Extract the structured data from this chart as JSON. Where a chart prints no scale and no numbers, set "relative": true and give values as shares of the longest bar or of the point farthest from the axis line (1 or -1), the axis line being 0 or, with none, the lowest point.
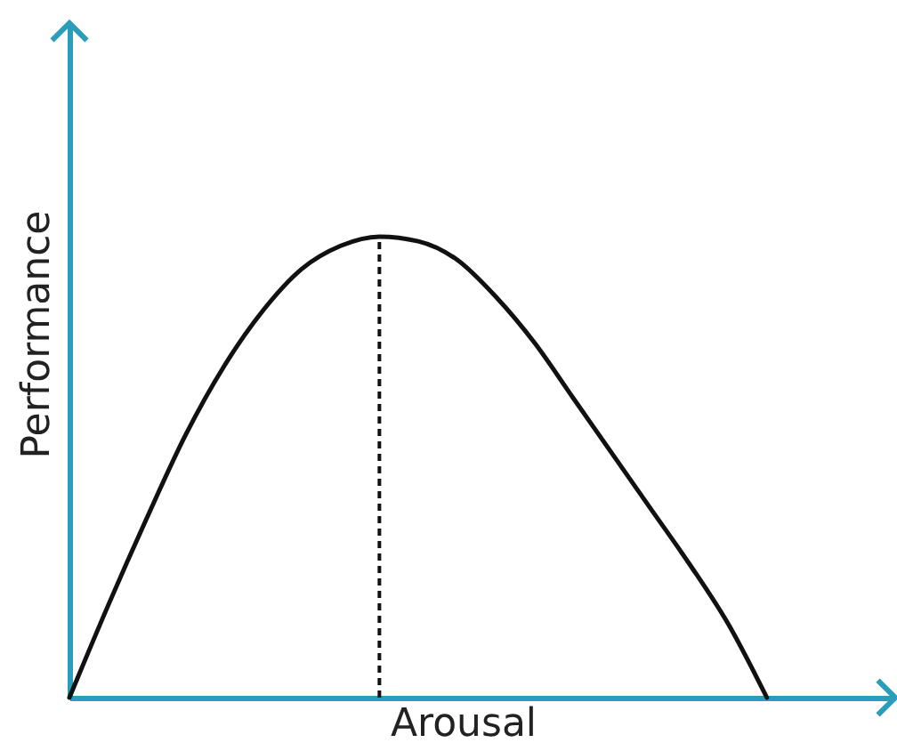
{
  "chart_data": {
    "type": "line",
    "xlabel": "Arousal",
    "ylabel": "Performance",
    "relative": true,
    "marker": "none",
    "line_style": "solid",
    "categories": [
      null,
      null,
      null,
      null,
      null,
      null,
      null,
      null,
      null,
      null,
      null,
      null,
      null,
      null,
      null,
      null,
      null,
      null,
      null
    ],
    "series": [
      {
        "color": "#111111",
        "values": [
          0,
          0.2,
          0.39,
          0.57,
          0.72,
          0.84,
          0.93,
          0.98,
          1,
          0.99,
          0.95,
          0.87,
          0.77,
          0.65,
          0.53,
          0.41,
          0.29,
          0.16,
          0
        ]
      }
    ]
  }
}
